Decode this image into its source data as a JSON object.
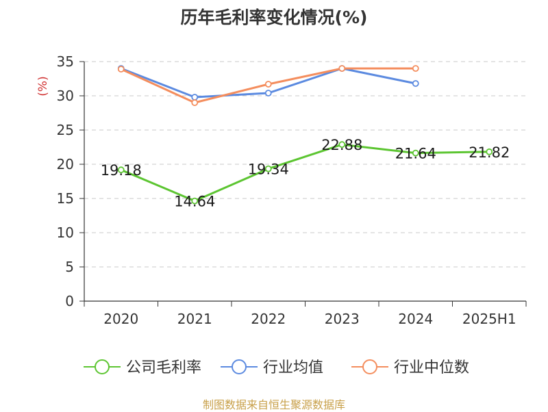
{
  "chart_data": {
    "type": "line",
    "title": "历年毛利率变化情况(%)",
    "ylabel": "(%)",
    "xlabel": "",
    "categories": [
      "2020",
      "2021",
      "2022",
      "2023",
      "2024",
      "2025H1"
    ],
    "ylim": [
      0,
      35
    ],
    "yticks": [
      0,
      5,
      10,
      15,
      20,
      25,
      30,
      35
    ],
    "grid": true,
    "legend_position": "bottom",
    "series": [
      {
        "name": "公司毛利率",
        "color": "#5cc531",
        "values": [
          19.18,
          14.64,
          19.34,
          22.88,
          21.64,
          21.82
        ],
        "labels": [
          "19.18",
          "14.64",
          "19.34",
          "22.88",
          "21.64",
          "21.82"
        ]
      },
      {
        "name": "行业均值",
        "color": "#5b8ae0",
        "values": [
          34.0,
          29.8,
          30.4,
          34.0,
          31.8,
          null
        ]
      },
      {
        "name": "行业中位数",
        "color": "#f48d5d",
        "values": [
          33.9,
          29.0,
          31.7,
          34.0,
          34.0,
          null
        ]
      }
    ]
  },
  "footer": {
    "source": "制图数据来自恒生聚源数据库"
  }
}
